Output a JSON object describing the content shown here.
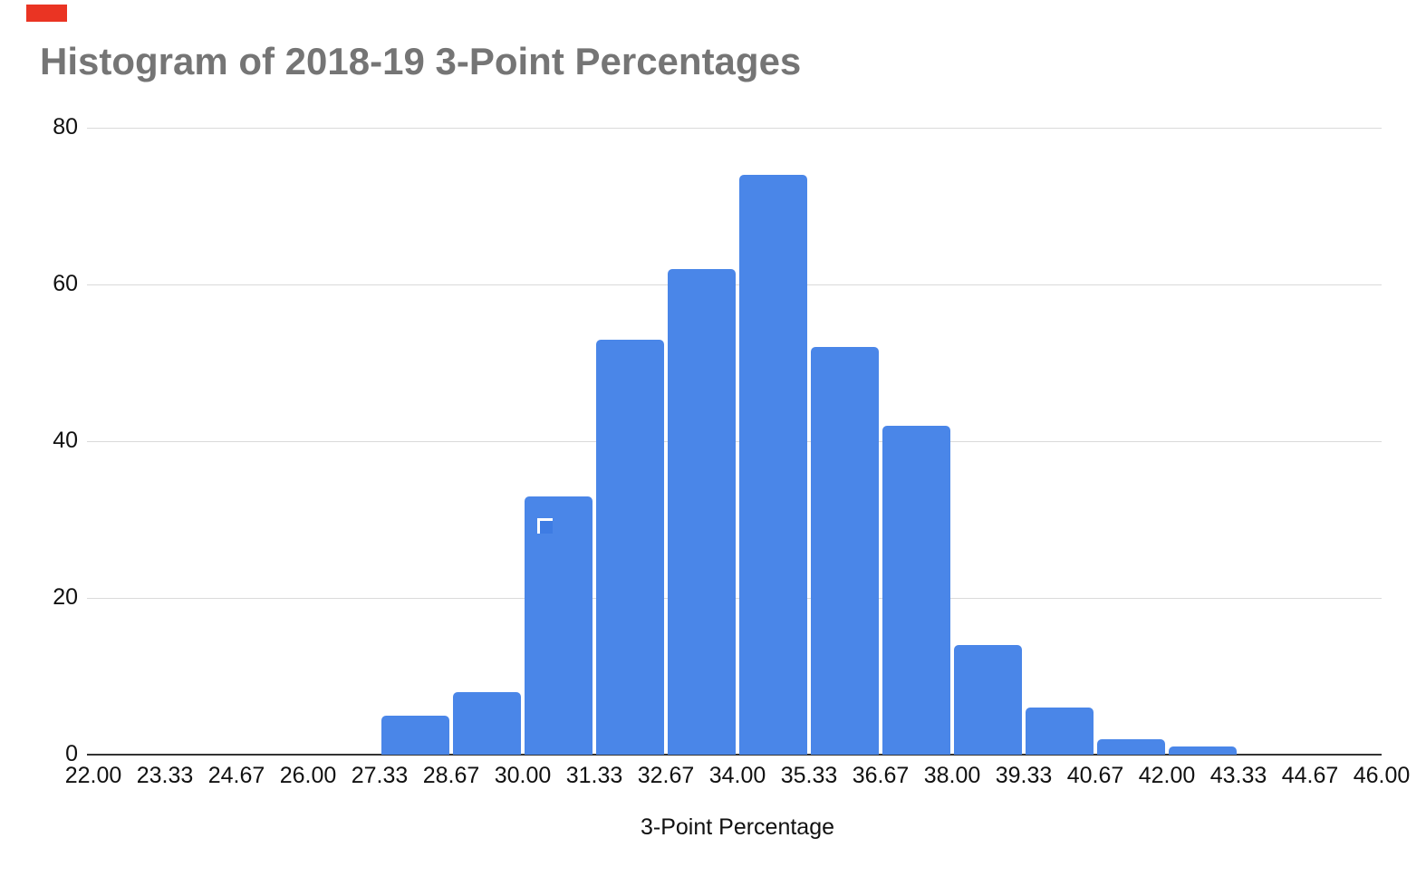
{
  "page": {
    "background_color": "#ffffff",
    "red_marker_color": "#ea3423"
  },
  "chart_data": {
    "type": "bar",
    "subtype": "histogram",
    "title": "Histogram of 2018-19 3-Point Percentages",
    "title_color": "#757575",
    "xlabel": "3-Point Percentage",
    "ylabel": "",
    "x_tick_labels": [
      "22.00",
      "23.33",
      "24.67",
      "26.00",
      "27.33",
      "28.67",
      "30.00",
      "31.33",
      "32.67",
      "34.00",
      "35.33",
      "36.67",
      "38.00",
      "39.33",
      "40.67",
      "42.00",
      "43.33",
      "44.67",
      "46.00"
    ],
    "xlim": [
      22,
      46
    ],
    "bin_width": 1.3333,
    "bin_starts": [
      "22.00",
      "23.33",
      "24.67",
      "26.00",
      "27.33",
      "28.67",
      "30.00",
      "31.33",
      "32.67",
      "34.00",
      "35.33",
      "36.67",
      "38.00",
      "39.33",
      "40.67",
      "42.00",
      "43.33",
      "44.67"
    ],
    "counts": [
      0,
      0,
      0,
      0,
      5,
      8,
      33,
      53,
      62,
      74,
      52,
      42,
      14,
      6,
      2,
      1,
      0,
      0
    ],
    "y_ticks": [
      0,
      20,
      40,
      60,
      80
    ],
    "ylim": [
      0,
      80
    ],
    "grid": "horizontal",
    "legend": "none",
    "bar_color": "#4a86e8",
    "gridline_color": "#dadada",
    "axis_line_color": "#333333",
    "tick_label_color": "#111111",
    "annotations": {
      "selection_marker_bin": "30.00",
      "selection_marker_description": "white corner bracket with darker blue square on bar 30.00-31.33"
    }
  }
}
